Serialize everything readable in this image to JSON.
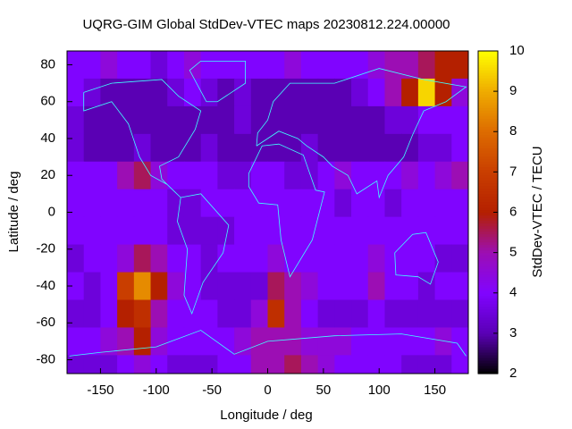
{
  "chart_data": {
    "type": "heatmap",
    "title": "UQRG-GIM Global StdDev-VTEC maps 20230812.224.00000",
    "x_label": "Longitude / deg",
    "y_label": "Latitude / deg",
    "colorbar_label": "StdDev-VTEC / TECU",
    "xbins": [
      -180,
      -165,
      -150,
      -135,
      -120,
      -105,
      -90,
      -75,
      -60,
      -45,
      -30,
      -15,
      0,
      15,
      30,
      45,
      60,
      75,
      90,
      105,
      120,
      135,
      150,
      165,
      180
    ],
    "ybins": [
      87.5,
      72.5,
      57.5,
      42.5,
      27.5,
      12.5,
      -2.5,
      -17.5,
      -32.5,
      -47.5,
      -62.5,
      -77.5,
      -87.5
    ],
    "xlim": [
      -180,
      180
    ],
    "ylim": [
      -87.5,
      87.5
    ],
    "xticks": [
      -150,
      -100,
      -50,
      0,
      50,
      100,
      150
    ],
    "yticks": [
      -80,
      -60,
      -40,
      -20,
      0,
      20,
      40,
      60,
      80
    ],
    "clim": [
      2,
      10
    ],
    "cticks": [
      2,
      3,
      4,
      5,
      6,
      7,
      8,
      9,
      10
    ],
    "colorscale": [
      "#000000",
      "#5a00b4",
      "#8004ff",
      "#9c0eb4",
      "#b42000",
      "#c93e00",
      "#dd6b00",
      "#efab00",
      "#ffff00"
    ],
    "coastline_color": "#40ffff",
    "values": [
      [
        4,
        4,
        4.5,
        4,
        4,
        3.5,
        4,
        4.5,
        4,
        4,
        4,
        4,
        4,
        4.5,
        4,
        4,
        4,
        4,
        4.5,
        5,
        5,
        5.5,
        6,
        6
      ],
      [
        4,
        3.5,
        3,
        3,
        3,
        3,
        3.5,
        4,
        3.5,
        3,
        3.5,
        3,
        3,
        3,
        3,
        3,
        3,
        3.5,
        4,
        5,
        6,
        9.5,
        6,
        4.5
      ],
      [
        3.5,
        3,
        3,
        3,
        3,
        3,
        3,
        3,
        3,
        3,
        3.5,
        3,
        3,
        3,
        3,
        3,
        3,
        3,
        3,
        3.5,
        3.5,
        4,
        4,
        4
      ],
      [
        3.5,
        3,
        3,
        3,
        3.5,
        3,
        3,
        3,
        3.5,
        3,
        3,
        3,
        3,
        3,
        3.5,
        3,
        3,
        3,
        3,
        3,
        3,
        3.5,
        3.5,
        4
      ],
      [
        4,
        4,
        4,
        5,
        5.5,
        4.5,
        4,
        4,
        4,
        3.5,
        3.5,
        4,
        4,
        3.5,
        3.5,
        4,
        4.5,
        4,
        4,
        4,
        4.5,
        4,
        4.5,
        5
      ],
      [
        4,
        4,
        4,
        4,
        4,
        4,
        3.5,
        3.5,
        4,
        4,
        4,
        4,
        4,
        4,
        4,
        4,
        3.5,
        4,
        4,
        3.5,
        4,
        4,
        4,
        4
      ],
      [
        4,
        4,
        4,
        4,
        4,
        4,
        3.5,
        3.5,
        3.5,
        3.5,
        4,
        4,
        4,
        4,
        4,
        4,
        4,
        4,
        4,
        4,
        4,
        4,
        4,
        4
      ],
      [
        3.5,
        4,
        4,
        4.5,
        5.5,
        5,
        4,
        4,
        3.5,
        4,
        4,
        4,
        4.5,
        4,
        4,
        4,
        4,
        4,
        4.5,
        4,
        4,
        4,
        3.5,
        3.5
      ],
      [
        4,
        3.5,
        4,
        7,
        8.5,
        6,
        4.5,
        4,
        3.5,
        3.5,
        3.5,
        3.5,
        5.5,
        5,
        4.5,
        4,
        4,
        4,
        5,
        4,
        4,
        3.5,
        4,
        4
      ],
      [
        3.5,
        3.5,
        4,
        6,
        6.5,
        5,
        4,
        4,
        4,
        3.5,
        3.5,
        4.5,
        6.5,
        5,
        4,
        3.5,
        3.5,
        3.5,
        4,
        3.5,
        3.5,
        3.5,
        3.5,
        3.5
      ],
      [
        4,
        4,
        4.5,
        5,
        6,
        4.5,
        4,
        4,
        4,
        4,
        4.5,
        5,
        5,
        5,
        4.5,
        4.5,
        4.5,
        4,
        4,
        4,
        4,
        4,
        4.5,
        4
      ],
      [
        3.5,
        3.5,
        3.5,
        4,
        4.5,
        4,
        3.5,
        3.5,
        3.5,
        4,
        4,
        5,
        5,
        5.5,
        5,
        4.5,
        4,
        4,
        4,
        4,
        3.5,
        3.5,
        3.5,
        4
      ]
    ]
  }
}
